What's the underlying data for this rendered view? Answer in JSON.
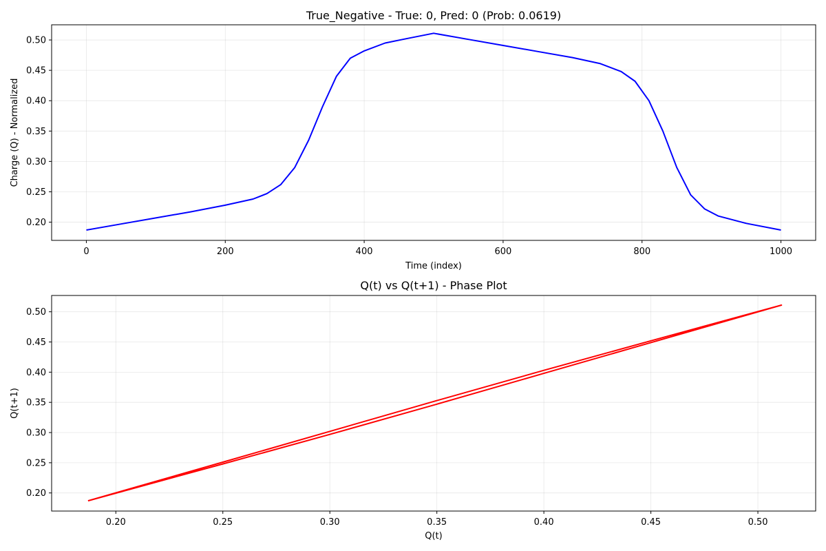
{
  "chart_data": [
    {
      "type": "line",
      "title": "True_Negative - True: 0, Pred: 0 (Prob: 0.0619)",
      "xlabel": "Time (index)",
      "ylabel": "Charge (Q) - Normalized",
      "xlim": [
        -50,
        1050
      ],
      "ylim": [
        0.17,
        0.525
      ],
      "xticks": [
        0,
        200,
        400,
        600,
        800,
        1000
      ],
      "xtick_labels": [
        "0",
        "200",
        "400",
        "600",
        "800",
        "1000"
      ],
      "yticks": [
        0.2,
        0.25,
        0.3,
        0.35,
        0.4,
        0.45,
        0.5
      ],
      "ytick_labels": [
        "0.20",
        "0.25",
        "0.30",
        "0.35",
        "0.40",
        "0.45",
        "0.50"
      ],
      "grid": true,
      "series": [
        {
          "color": "#0000ff",
          "x": [
            0,
            50,
            100,
            150,
            200,
            240,
            260,
            280,
            300,
            320,
            340,
            360,
            380,
            400,
            430,
            460,
            500,
            550,
            600,
            650,
            700,
            740,
            770,
            790,
            810,
            830,
            850,
            870,
            890,
            910,
            950,
            1000
          ],
          "y": [
            0.187,
            0.197,
            0.207,
            0.217,
            0.228,
            0.238,
            0.247,
            0.262,
            0.29,
            0.335,
            0.39,
            0.44,
            0.47,
            0.482,
            0.495,
            0.502,
            0.511,
            0.501,
            0.491,
            0.481,
            0.471,
            0.461,
            0.448,
            0.432,
            0.4,
            0.35,
            0.29,
            0.245,
            0.222,
            0.21,
            0.198,
            0.187
          ]
        }
      ]
    },
    {
      "type": "line",
      "title": "Q(t) vs Q(t+1) - Phase Plot",
      "xlabel": "Q(t)",
      "ylabel": "Q(t+1)",
      "xlim": [
        0.17,
        0.527
      ],
      "ylim": [
        0.17,
        0.527
      ],
      "xticks": [
        0.2,
        0.25,
        0.3,
        0.35,
        0.4,
        0.45,
        0.5
      ],
      "xtick_labels": [
        "0.20",
        "0.25",
        "0.30",
        "0.35",
        "0.40",
        "0.45",
        "0.50"
      ],
      "yticks": [
        0.2,
        0.25,
        0.3,
        0.35,
        0.4,
        0.45,
        0.5
      ],
      "ytick_labels": [
        "0.20",
        "0.25",
        "0.30",
        "0.35",
        "0.40",
        "0.45",
        "0.50"
      ],
      "grid": true,
      "series": [
        {
          "color": "#ff0000",
          "x": [
            0.187,
            0.25,
            0.3,
            0.35,
            0.4,
            0.45,
            0.511,
            0.45,
            0.4,
            0.35,
            0.3,
            0.25,
            0.187
          ],
          "y": [
            0.187,
            0.251,
            0.302,
            0.353,
            0.403,
            0.452,
            0.511,
            0.449,
            0.398,
            0.347,
            0.297,
            0.248,
            0.187
          ]
        }
      ]
    }
  ]
}
